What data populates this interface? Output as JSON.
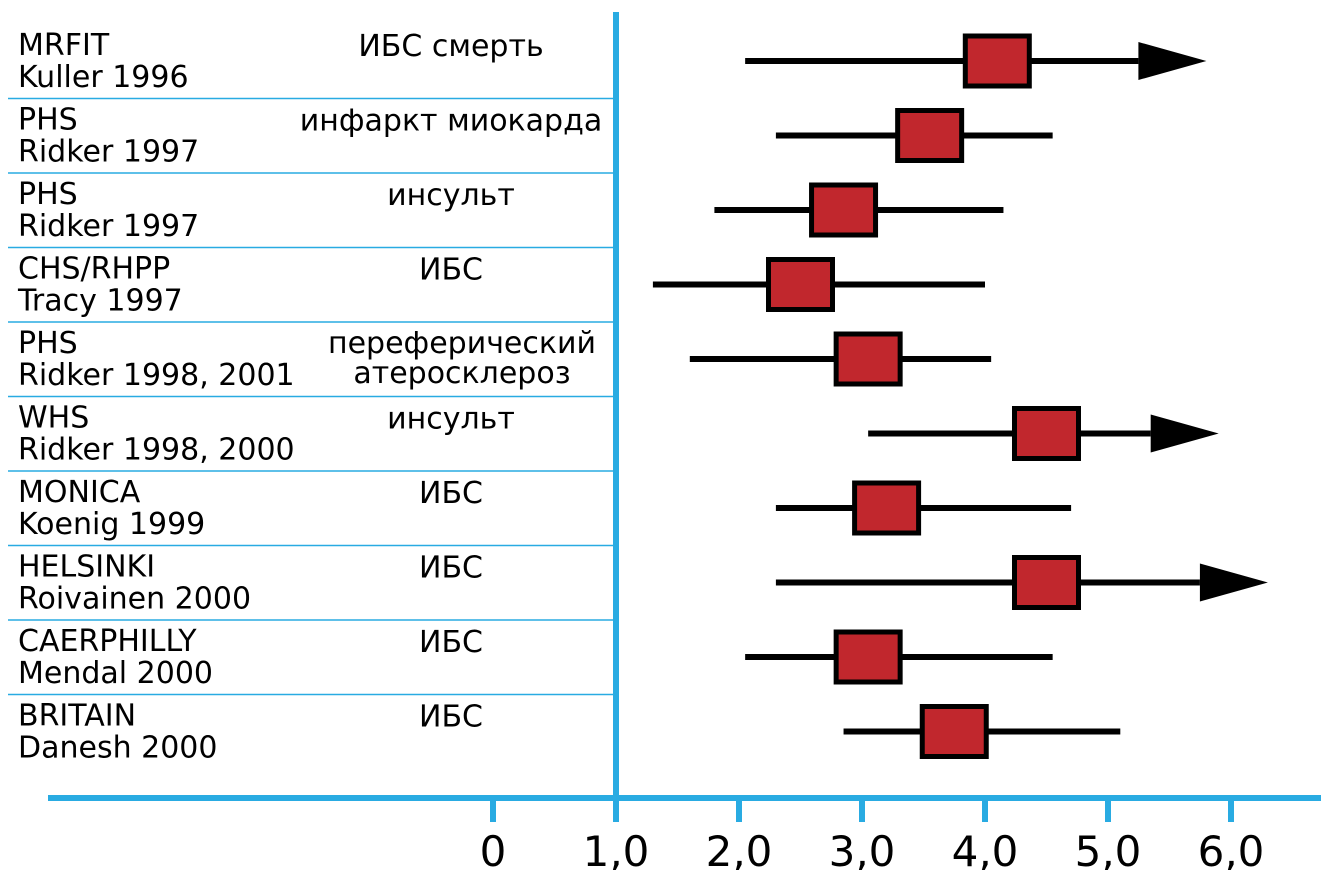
{
  "chart_data": {
    "type": "forest",
    "title": "",
    "xlabel": "",
    "ylabel": "",
    "xlim": [
      -0.2,
      6.7
    ],
    "ticks": [
      "0",
      "1,0",
      "2,0",
      "3,0",
      "4,0",
      "5,0",
      "6,0"
    ],
    "tick_values": [
      0,
      1,
      2,
      3,
      4,
      5,
      6
    ],
    "reference_line": 1.0,
    "colors": {
      "axis": "#29abe2",
      "separator": "#29abe2",
      "box_fill": "#c1272d",
      "box_stroke": "#000000",
      "whisker": "#000000"
    },
    "rows": [
      {
        "study": "MRFIT",
        "author": "Kuller 1996",
        "outcome": [
          "ИБС смерть"
        ],
        "estimate": 4.1,
        "lower": 2.05,
        "upper": 5.8,
        "arrow": true
      },
      {
        "study": "PHS",
        "author": "Ridker 1997",
        "outcome": [
          "инфаркт миокарда"
        ],
        "estimate": 3.55,
        "lower": 2.3,
        "upper": 4.55,
        "arrow": false
      },
      {
        "study": "PHS",
        "author": "Ridker 1997",
        "outcome": [
          "инсульт"
        ],
        "estimate": 2.85,
        "lower": 1.8,
        "upper": 4.15,
        "arrow": false
      },
      {
        "study": "CHS/RHPP",
        "author": "Tracy 1997",
        "outcome": [
          "ИБС"
        ],
        "estimate": 2.5,
        "lower": 1.3,
        "upper": 4.0,
        "arrow": false
      },
      {
        "study": "PHS",
        "author": "Ridker 1998, 2001",
        "outcome": [
          "переферический",
          "атеросклероз"
        ],
        "estimate": 3.05,
        "lower": 1.6,
        "upper": 4.05,
        "arrow": false
      },
      {
        "study": "WHS",
        "author": "Ridker 1998, 2000",
        "outcome": [
          "инсульт"
        ],
        "estimate": 4.5,
        "lower": 3.05,
        "upper": 5.9,
        "arrow": true
      },
      {
        "study": "MONICA",
        "author": "Koenig 1999",
        "outcome": [
          "ИБС"
        ],
        "estimate": 3.2,
        "lower": 2.3,
        "upper": 4.7,
        "arrow": false
      },
      {
        "study": "HELSINKI",
        "author": "Roivainen 2000",
        "outcome": [
          "ИБС"
        ],
        "estimate": 4.5,
        "lower": 2.3,
        "upper": 6.3,
        "arrow": true
      },
      {
        "study": "CAERPHILLY",
        "author": "Mendal 2000",
        "outcome": [
          "ИБС"
        ],
        "estimate": 3.05,
        "lower": 2.05,
        "upper": 4.55,
        "arrow": false
      },
      {
        "study": "BRITAIN",
        "author": "Danesh 2000",
        "outcome": [
          "ИБС"
        ],
        "estimate": 3.75,
        "lower": 2.85,
        "upper": 5.1,
        "arrow": false
      }
    ]
  }
}
